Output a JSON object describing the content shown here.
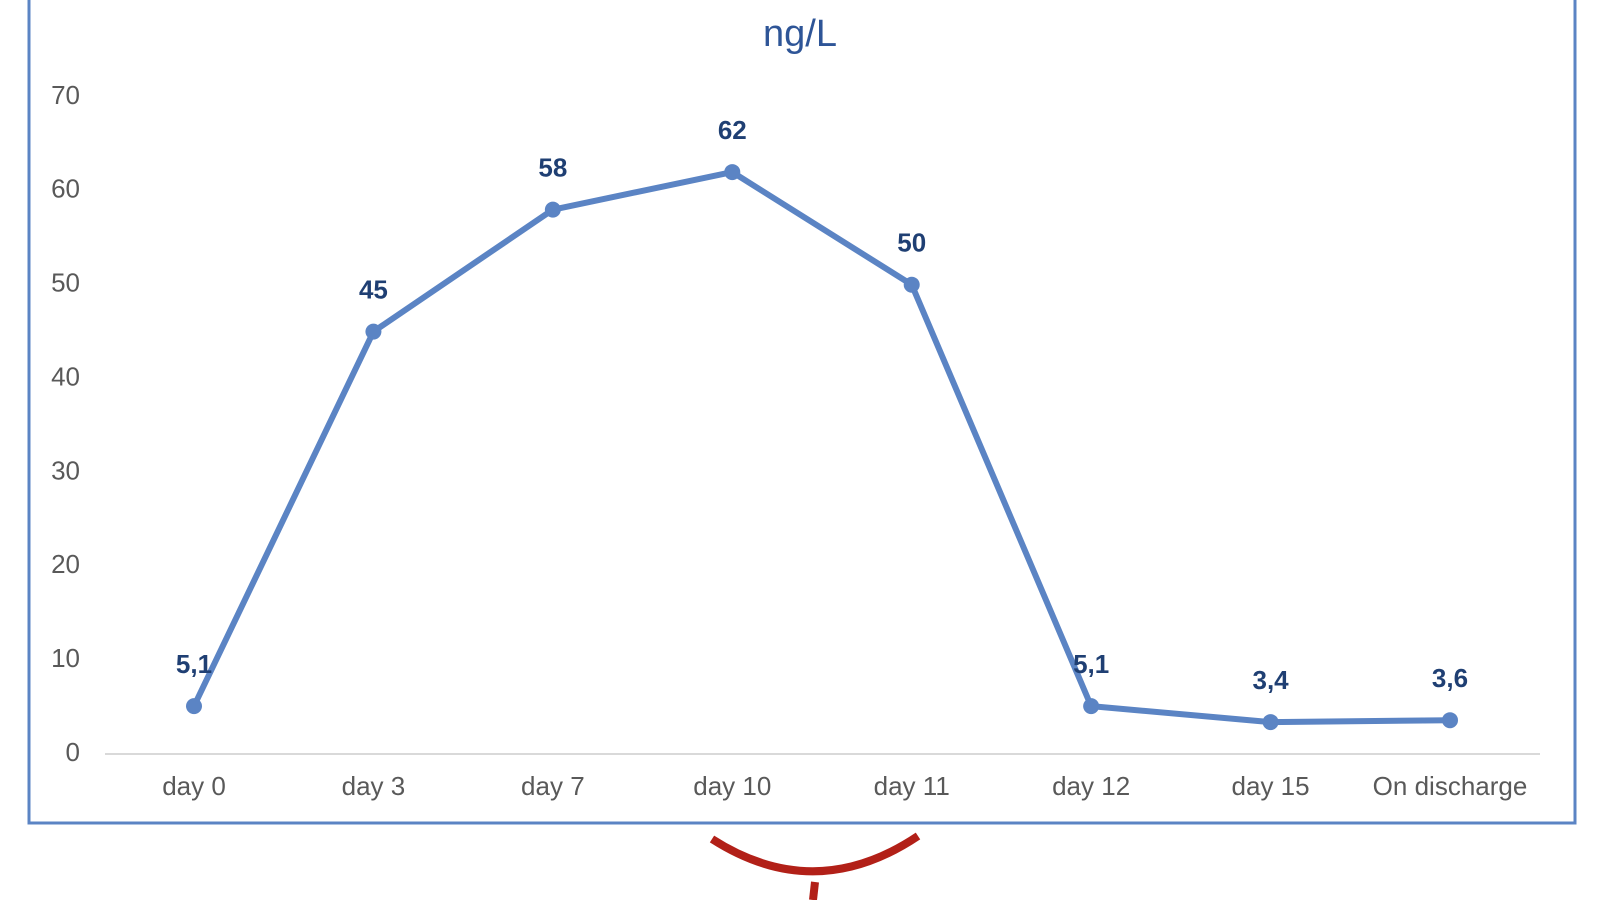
{
  "chart_data": {
    "type": "line",
    "title": "ng/L",
    "categories": [
      "day 0",
      "day 3",
      "day 7",
      "day 10",
      "day 11",
      "day 12",
      "day 15",
      "On discharge"
    ],
    "series": [
      {
        "color": "#5b84c4",
        "values": [
          5.1,
          45,
          58,
          62,
          50,
          5.1,
          3.4,
          3.6
        ],
        "value_labels": [
          "5,1",
          "45",
          "58",
          "62",
          "50",
          "5,1",
          "3,4",
          "3,6"
        ]
      }
    ],
    "ylim": [
      0,
      70
    ],
    "yticks": [
      0,
      10,
      20,
      30,
      40,
      50,
      60,
      70
    ],
    "grid": false
  }
}
